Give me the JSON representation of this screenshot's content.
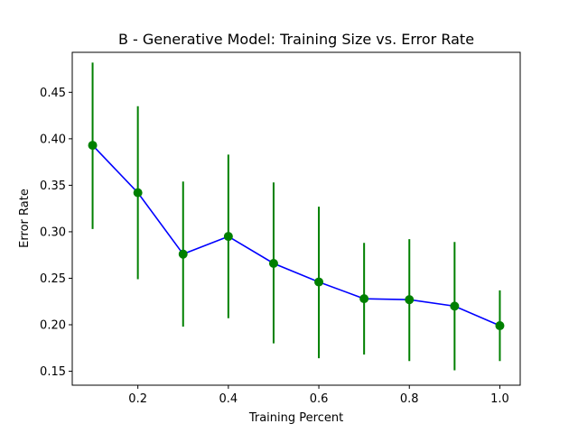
{
  "chart_data": {
    "type": "line",
    "title": "B - Generative Model: Training Size vs. Error Rate",
    "xlabel": "Training Percent",
    "ylabel": "Error Rate",
    "xlim": [
      0.055,
      1.045
    ],
    "ylim": [
      0.135,
      0.493
    ],
    "x_ticks": [
      0.2,
      0.4,
      0.6,
      0.8,
      1.0
    ],
    "x_tick_labels": [
      "0.2",
      "0.4",
      "0.6",
      "0.8",
      "1.0"
    ],
    "y_ticks": [
      0.15,
      0.2,
      0.25,
      0.3,
      0.35,
      0.4,
      0.45
    ],
    "y_tick_labels": [
      "0.15",
      "0.20",
      "0.25",
      "0.30",
      "0.35",
      "0.40",
      "0.45"
    ],
    "grid": false,
    "colors": {
      "line": "#0000ff",
      "marker": "#008000",
      "errorbar": "#008000"
    },
    "series": [
      {
        "x": [
          0.1,
          0.2,
          0.3,
          0.4,
          0.5,
          0.6,
          0.7,
          0.8,
          0.9,
          1.0
        ],
        "y": [
          0.393,
          0.342,
          0.276,
          0.295,
          0.266,
          0.246,
          0.228,
          0.227,
          0.22,
          0.199
        ],
        "yerr_low": [
          0.303,
          0.249,
          0.198,
          0.207,
          0.18,
          0.164,
          0.168,
          0.161,
          0.151,
          0.161
        ],
        "yerr_high": [
          0.482,
          0.435,
          0.354,
          0.383,
          0.353,
          0.327,
          0.288,
          0.292,
          0.289,
          0.237
        ]
      }
    ]
  }
}
